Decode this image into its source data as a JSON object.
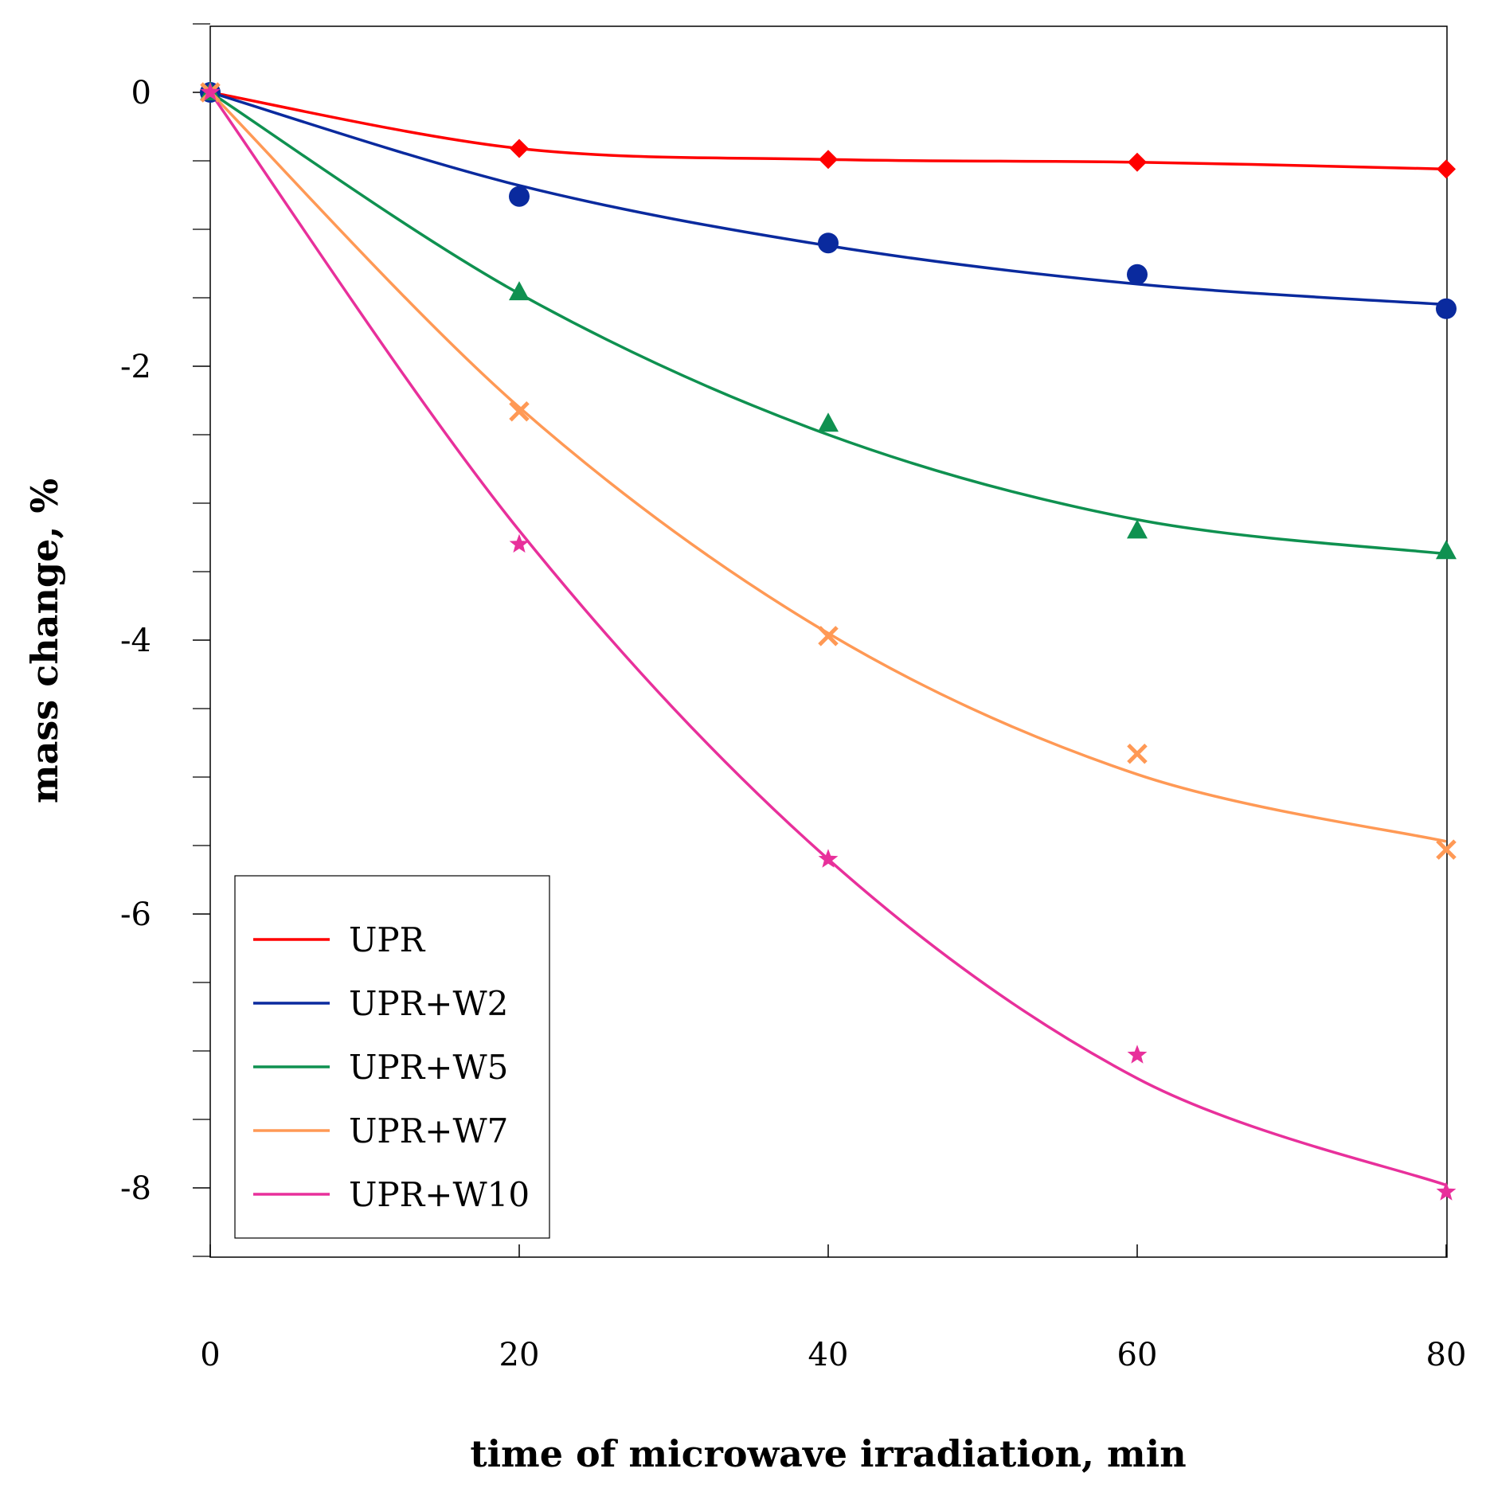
{
  "chart_data": {
    "type": "line",
    "title": "",
    "xlabel": "time of microwave irradiation, min",
    "ylabel": "mass change, %",
    "xlim": [
      0,
      80
    ],
    "ylim": [
      -8.5,
      0.5
    ],
    "x_ticks": [
      0,
      20,
      40,
      60,
      80
    ],
    "y_ticks": [
      0,
      -2,
      -4,
      -6,
      -8
    ],
    "y_tick_labels": [
      "0",
      "-2",
      "-4",
      "-6",
      "-8"
    ],
    "y_minor_step": 0.5,
    "grid": false,
    "legend_position": "bottom-left",
    "x": [
      0,
      20,
      40,
      60,
      80
    ],
    "series": [
      {
        "name": "UPR",
        "color": "#ff0000",
        "marker": "diamond",
        "values": [
          0,
          -0.41,
          -0.49,
          -0.51,
          -0.56
        ],
        "fit": [
          0,
          -0.41,
          -0.49,
          -0.51,
          -0.56
        ]
      },
      {
        "name": "UPR+W2",
        "color": "#0a2a9e",
        "marker": "circle",
        "values": [
          0,
          -0.76,
          -1.1,
          -1.33,
          -1.58
        ],
        "fit": [
          0,
          -0.68,
          -1.12,
          -1.4,
          -1.55
        ]
      },
      {
        "name": "UPR+W5",
        "color": "#0f9150",
        "marker": "triangle",
        "values": [
          0,
          -1.46,
          -2.42,
          -3.2,
          -3.35
        ],
        "fit": [
          0,
          -1.47,
          -2.5,
          -3.12,
          -3.37
        ]
      },
      {
        "name": "UPR+W7",
        "color": "#ff9955",
        "marker": "cross",
        "values": [
          0,
          -2.33,
          -3.97,
          -4.83,
          -5.53
        ],
        "fit": [
          0,
          -2.3,
          -3.95,
          -4.98,
          -5.47
        ]
      },
      {
        "name": "UPR+W10",
        "color": "#e8309b",
        "marker": "star",
        "values": [
          0,
          -3.3,
          -5.6,
          -7.03,
          -8.03
        ],
        "fit": [
          0,
          -3.2,
          -5.6,
          -7.2,
          -7.98
        ]
      }
    ]
  }
}
